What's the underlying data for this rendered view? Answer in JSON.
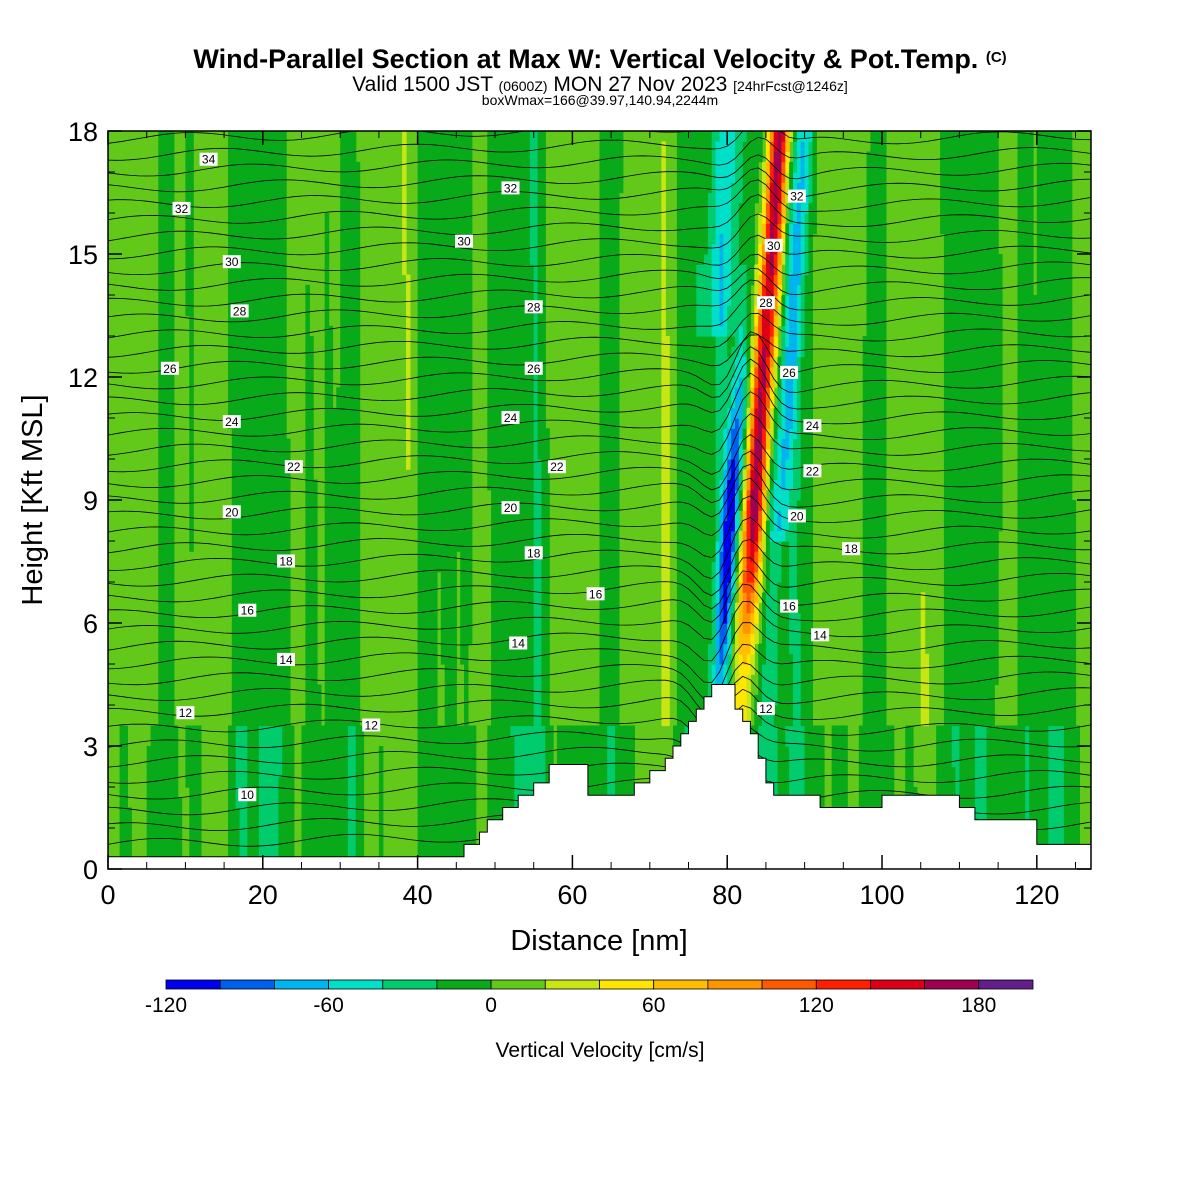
{
  "header": {
    "title": "Wind-Parallel Section at Max W: Vertical Velocity & Pot.Temp.",
    "copyright": "(C)",
    "valid_prefix": "Valid 1500 JST",
    "valid_utc": "(0600Z)",
    "valid_date": "MON 27 Nov 2023",
    "forecast": "[24hrFcst@1246z]",
    "boxinfo": "boxWmax=166@39.97,140.94,2244m"
  },
  "chart_data": {
    "type": "heatmap",
    "xlabel": "Distance [nm]",
    "ylabel": "Height [Kft MSL]",
    "xlim": [
      0,
      127
    ],
    "ylim": [
      0,
      18
    ],
    "xticks": [
      0,
      20,
      40,
      60,
      80,
      100,
      120
    ],
    "yticks": [
      0,
      3,
      6,
      9,
      12,
      15,
      18
    ],
    "colorbar": {
      "label": "Vertical Velocity [cm/s]",
      "ticks": [
        -120,
        -60,
        0,
        60,
        120,
        180
      ],
      "levels": [
        -120,
        -100,
        -80,
        -60,
        -40,
        -20,
        0,
        20,
        40,
        60,
        80,
        100,
        120,
        140,
        160,
        180,
        200
      ],
      "colors": [
        "#0000ee",
        "#0060ee",
        "#00b4f0",
        "#00e0c8",
        "#00cc6e",
        "#08aa1a",
        "#62c81a",
        "#c8e614",
        "#ffe600",
        "#ffbe00",
        "#ff9600",
        "#ff5a00",
        "#ff2000",
        "#dc0016",
        "#a00050",
        "#641e8c"
      ]
    },
    "max_updraft_cm_s": 166,
    "max_downdraft_cm_s": -110,
    "terrain": [
      [
        0,
        0.3
      ],
      [
        45,
        0.3
      ],
      [
        46,
        0.6
      ],
      [
        48,
        0.9
      ],
      [
        49,
        1.2
      ],
      [
        51,
        1.5
      ],
      [
        53,
        1.8
      ],
      [
        55,
        2.1
      ],
      [
        57,
        2.55
      ],
      [
        61,
        2.55
      ],
      [
        62,
        1.8
      ],
      [
        66,
        1.8
      ],
      [
        68,
        2.1
      ],
      [
        70,
        2.4
      ],
      [
        72,
        2.7
      ],
      [
        73,
        3.0
      ],
      [
        74,
        3.3
      ],
      [
        75,
        3.6
      ],
      [
        76,
        3.9
      ],
      [
        77,
        4.2
      ],
      [
        78,
        4.5
      ],
      [
        80,
        4.5
      ],
      [
        81,
        3.9
      ],
      [
        82,
        3.6
      ],
      [
        83,
        3.3
      ],
      [
        84,
        2.7
      ],
      [
        85,
        2.1
      ],
      [
        86,
        1.8
      ],
      [
        91,
        1.8
      ],
      [
        92,
        1.5
      ],
      [
        96,
        1.5
      ],
      [
        100,
        1.8
      ],
      [
        108,
        1.8
      ],
      [
        110,
        1.5
      ],
      [
        112,
        1.2
      ],
      [
        118,
        1.2
      ],
      [
        120,
        0.6
      ],
      [
        127,
        0.6
      ]
    ],
    "theta_contour_labels": [
      {
        "text": "34",
        "x": 13,
        "y": 17.3
      },
      {
        "text": "32",
        "x": 9.5,
        "y": 16.1
      },
      {
        "text": "32",
        "x": 52,
        "y": 16.6
      },
      {
        "text": "32",
        "x": 89,
        "y": 16.4
      },
      {
        "text": "30",
        "x": 16,
        "y": 14.8
      },
      {
        "text": "30",
        "x": 46,
        "y": 15.3
      },
      {
        "text": "30",
        "x": 86,
        "y": 15.2
      },
      {
        "text": "28",
        "x": 17,
        "y": 13.6
      },
      {
        "text": "28",
        "x": 55,
        "y": 13.7
      },
      {
        "text": "28",
        "x": 85,
        "y": 13.8
      },
      {
        "text": "26",
        "x": 8,
        "y": 12.2
      },
      {
        "text": "26",
        "x": 55,
        "y": 12.2
      },
      {
        "text": "26",
        "x": 88,
        "y": 12.1
      },
      {
        "text": "24",
        "x": 16,
        "y": 10.9
      },
      {
        "text": "24",
        "x": 52,
        "y": 11.0
      },
      {
        "text": "24",
        "x": 91,
        "y": 10.8
      },
      {
        "text": "22",
        "x": 24,
        "y": 9.8
      },
      {
        "text": "22",
        "x": 58,
        "y": 9.8
      },
      {
        "text": "22",
        "x": 91,
        "y": 9.7
      },
      {
        "text": "20",
        "x": 16,
        "y": 8.7
      },
      {
        "text": "20",
        "x": 52,
        "y": 8.8
      },
      {
        "text": "20",
        "x": 89,
        "y": 8.6
      },
      {
        "text": "18",
        "x": 23,
        "y": 7.5
      },
      {
        "text": "18",
        "x": 55,
        "y": 7.7
      },
      {
        "text": "18",
        "x": 96,
        "y": 7.8
      },
      {
        "text": "16",
        "x": 18,
        "y": 6.3
      },
      {
        "text": "16",
        "x": 63,
        "y": 6.7
      },
      {
        "text": "16",
        "x": 88,
        "y": 6.4
      },
      {
        "text": "14",
        "x": 23,
        "y": 5.1
      },
      {
        "text": "14",
        "x": 53,
        "y": 5.5
      },
      {
        "text": "14",
        "x": 92,
        "y": 5.7
      },
      {
        "text": "12",
        "x": 10,
        "y": 3.8
      },
      {
        "text": "12",
        "x": 34,
        "y": 3.5
      },
      {
        "text": "12",
        "x": 85,
        "y": 3.9
      },
      {
        "text": "10",
        "x": 18,
        "y": 1.8
      }
    ]
  }
}
